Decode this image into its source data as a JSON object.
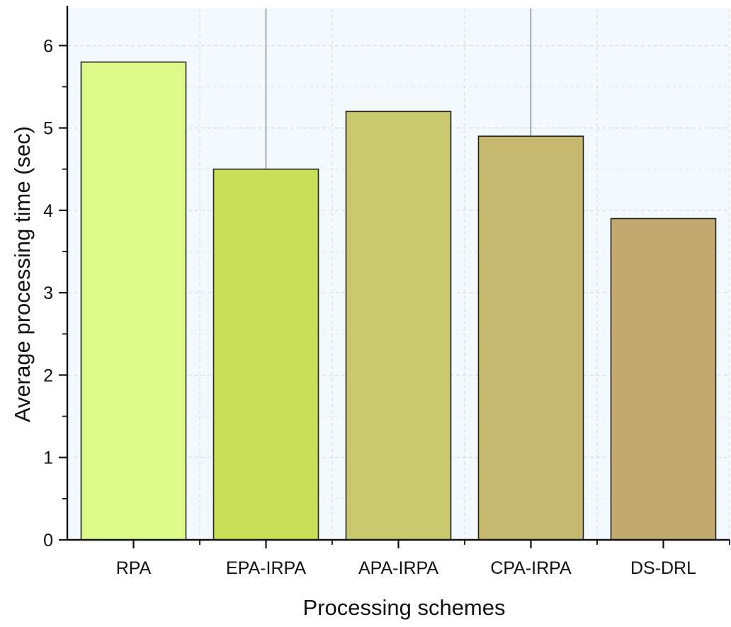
{
  "chart_data": {
    "type": "bar",
    "title": "",
    "xlabel": "Processing schemes",
    "ylabel": "Average processing time (sec)",
    "categories": [
      "RPA",
      "EPA-IRPA",
      "APA-IRPA",
      "CPA-IRPA",
      "DS-DRL"
    ],
    "values": [
      5.8,
      4.5,
      5.2,
      4.9,
      3.9
    ],
    "error_upper": [
      5.8,
      6.45,
      5.2,
      6.45,
      3.9
    ],
    "ylim": [
      0,
      6.45
    ],
    "yticks": [
      0,
      1,
      2,
      3,
      4,
      5,
      6
    ],
    "grid": true,
    "bar_colors": [
      "#ddf98a",
      "#c9de59",
      "#c9c96f",
      "#c6b86f",
      "#c3a96f"
    ],
    "background_color": "#f3faff"
  }
}
